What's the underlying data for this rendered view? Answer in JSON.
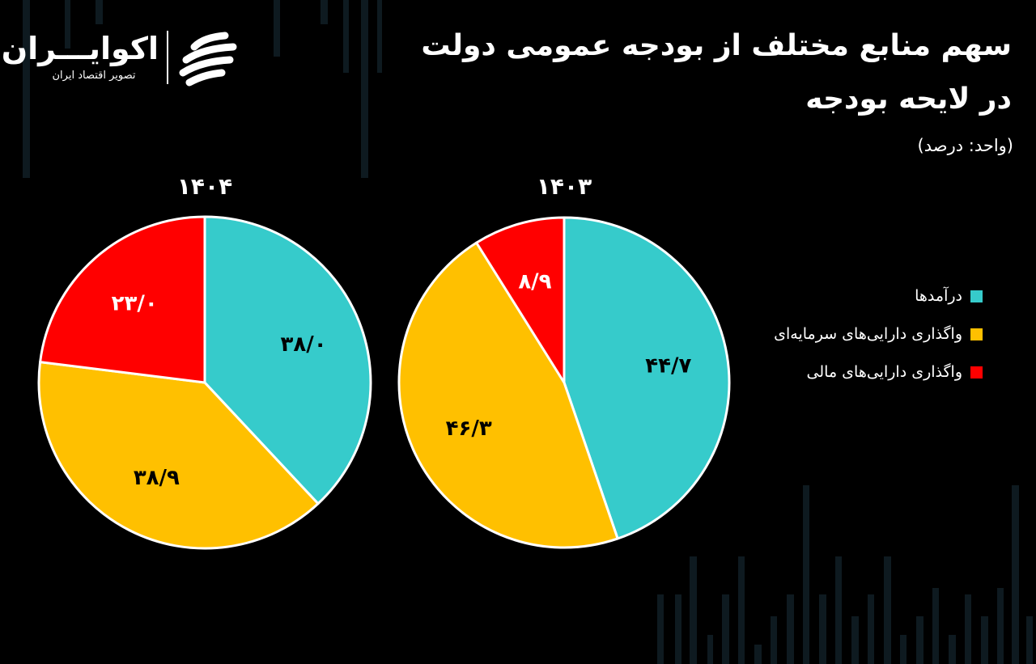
{
  "header": {
    "title_line1": "سهم منابع مختلف از بودجه عمومی دولت",
    "title_line2": "در لایحه بودجه",
    "unit": "(واحد: درصد)"
  },
  "logo": {
    "name": "اکوایـــران",
    "tagline": "تصویر اقتصاد ایران"
  },
  "colors": {
    "background": "#000000",
    "revenues": "#36CBCB",
    "capital_assets": "#FFC000",
    "financial_assets": "#FF0000",
    "slice_border": "#FFFFFF"
  },
  "legend": [
    {
      "label": "درآمدها",
      "color": "#36CBCB"
    },
    {
      "label": "واگذاری دارایی‌های سرمایه‌ای",
      "color": "#FFC000"
    },
    {
      "label": "واگذاری دارایی‌های مالی",
      "color": "#FF0000"
    }
  ],
  "chart_data": [
    {
      "type": "pie",
      "title": "۱۴۰۴",
      "categories": [
        "درآمدها",
        "واگذاری دارایی‌های سرمایه‌ای",
        "واگذاری دارایی‌های مالی"
      ],
      "values": [
        38.0,
        38.9,
        23.0
      ],
      "value_labels": [
        "۳۸/۰",
        "۳۸/۹",
        "۲۳/۰"
      ],
      "colors": [
        "#36CBCB",
        "#FFC000",
        "#FF0000"
      ]
    },
    {
      "type": "pie",
      "title": "۱۴۰۳",
      "categories": [
        "درآمدها",
        "واگذاری دارایی‌های سرمایه‌ای",
        "واگذاری دارایی‌های مالی"
      ],
      "values": [
        44.7,
        46.3,
        8.9
      ],
      "value_labels": [
        "۴۴/۷",
        "۴۶/۳",
        "۸/۹"
      ],
      "colors": [
        "#36CBCB",
        "#FFC000",
        "#FF0000"
      ]
    }
  ]
}
